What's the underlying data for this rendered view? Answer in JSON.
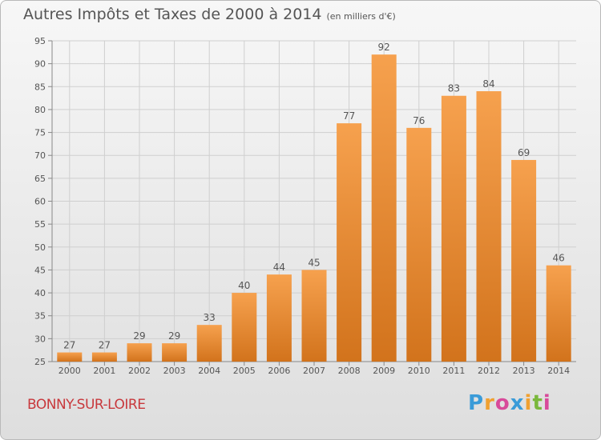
{
  "chart_data": {
    "type": "bar",
    "title": "Autres Impôts et Taxes de 2000 à 2014",
    "subtitle": "(en milliers d'€)",
    "xlabel": "",
    "ylabel": "",
    "categories": [
      "2000",
      "2001",
      "2002",
      "2003",
      "2004",
      "2005",
      "2006",
      "2007",
      "2008",
      "2009",
      "2010",
      "2011",
      "2012",
      "2013",
      "2014"
    ],
    "values": [
      27,
      27,
      29,
      29,
      33,
      40,
      44,
      45,
      77,
      92,
      76,
      83,
      84,
      69,
      46
    ],
    "data_labels": [
      "27",
      "27",
      "29",
      "29",
      "33",
      "40",
      "44",
      "45",
      "77",
      "92",
      "76",
      "83",
      "84",
      "69",
      "46"
    ],
    "ylim": [
      25,
      95
    ],
    "yticks": [
      25,
      30,
      35,
      40,
      45,
      50,
      55,
      60,
      65,
      70,
      75,
      80,
      85,
      90,
      95
    ],
    "ytick_labels": [
      "25",
      "30",
      "35",
      "40",
      "45",
      "50",
      "55",
      "60",
      "65",
      "70",
      "75",
      "80",
      "85",
      "90",
      "95"
    ],
    "grid": true,
    "legend": "none",
    "bar_color_top": "#f6a14e",
    "bar_color_bottom": "#d2731c"
  },
  "footer": {
    "commune": "BONNY-SUR-LOIRE",
    "brand_letters": [
      "P",
      "r",
      "o",
      "x",
      "i",
      "t",
      "i"
    ],
    "brand_colors": [
      "#3a9bd8",
      "#f0a030",
      "#d84a9a",
      "#3a9bd8",
      "#f0a030",
      "#7ab83c",
      "#d84a9a"
    ]
  },
  "colors": {
    "commune": "#c8383c",
    "axis_text": "#555555",
    "grid": "#cfcfcf"
  }
}
